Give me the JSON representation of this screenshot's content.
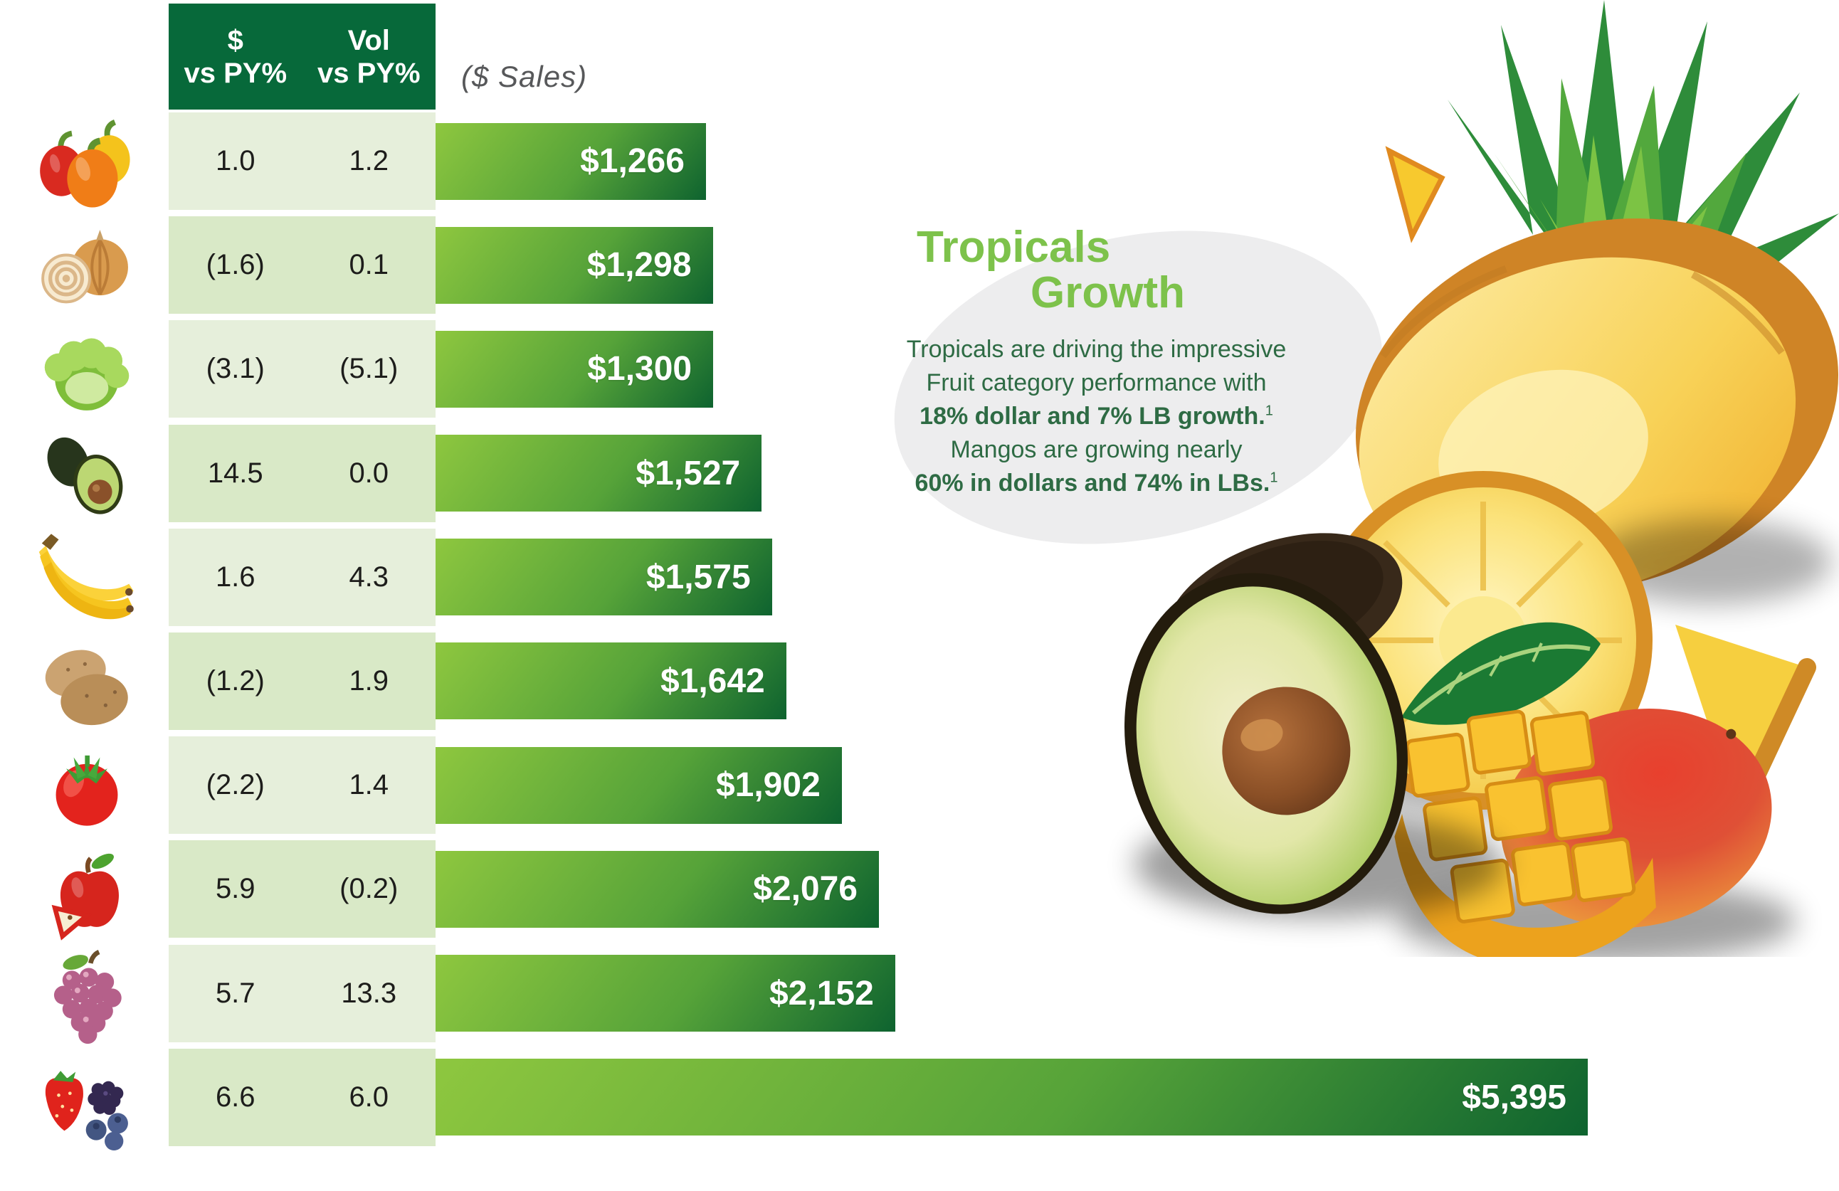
{
  "header": {
    "col1_top": "$",
    "col1_bottom": "vs PY%",
    "col2_top": "Vol",
    "col2_bottom": "vs PY%",
    "axis_label": "($ Sales)"
  },
  "rows": [
    {
      "icon": "bell-peppers-icon",
      "dollar_vs_py": "1.0",
      "vol_vs_py": "1.2",
      "sales_display": "$1,266",
      "sales_value": 1266
    },
    {
      "icon": "onion-icon",
      "dollar_vs_py": "(1.6)",
      "vol_vs_py": "0.1",
      "sales_display": "$1,298",
      "sales_value": 1298
    },
    {
      "icon": "lettuce-icon",
      "dollar_vs_py": "(3.1)",
      "vol_vs_py": "(5.1)",
      "sales_display": "$1,300",
      "sales_value": 1300
    },
    {
      "icon": "avocado-icon",
      "dollar_vs_py": "14.5",
      "vol_vs_py": "0.0",
      "sales_display": "$1,527",
      "sales_value": 1527
    },
    {
      "icon": "bananas-icon",
      "dollar_vs_py": "1.6",
      "vol_vs_py": "4.3",
      "sales_display": "$1,575",
      "sales_value": 1575
    },
    {
      "icon": "potatoes-icon",
      "dollar_vs_py": "(1.2)",
      "vol_vs_py": "1.9",
      "sales_display": "$1,642",
      "sales_value": 1642
    },
    {
      "icon": "tomato-icon",
      "dollar_vs_py": "(2.2)",
      "vol_vs_py": "1.4",
      "sales_display": "$1,902",
      "sales_value": 1902
    },
    {
      "icon": "apple-icon",
      "dollar_vs_py": "5.9",
      "vol_vs_py": "(0.2)",
      "sales_display": "$2,076",
      "sales_value": 2076
    },
    {
      "icon": "grapes-icon",
      "dollar_vs_py": "5.7",
      "vol_vs_py": "13.3",
      "sales_display": "$2,152",
      "sales_value": 2152
    },
    {
      "icon": "berries-icon",
      "dollar_vs_py": "6.6",
      "vol_vs_py": "6.0",
      "sales_display": "$5,395",
      "sales_value": 5395
    }
  ],
  "callout": {
    "title_line1": "Tropicals",
    "title_line2": "Growth",
    "line1": "Tropicals are driving the impressive",
    "line2": "Fruit category performance with",
    "line3_bold": "18% dollar and 7% LB growth.",
    "line4": "Mangos are growing nearly",
    "line5_bold": "60% in dollars and 74% in LBs.",
    "footnote_marker": "1"
  },
  "chart_data": {
    "type": "bar",
    "orientation": "horizontal",
    "title": "($ Sales)",
    "categories": [
      "bell peppers",
      "onions",
      "lettuce",
      "avocados",
      "bananas",
      "potatoes",
      "tomatoes",
      "apples",
      "grapes",
      "berries"
    ],
    "series": [
      {
        "name": "$ Sales",
        "values": [
          1266,
          1298,
          1300,
          1527,
          1575,
          1642,
          1902,
          2076,
          2152,
          5395
        ]
      },
      {
        "name": "$ vs PY%",
        "values": [
          1.0,
          -1.6,
          -3.1,
          14.5,
          1.6,
          -1.2,
          -2.2,
          5.9,
          5.7,
          6.6
        ]
      },
      {
        "name": "Vol vs PY%",
        "values": [
          1.2,
          0.1,
          -5.1,
          0.0,
          4.3,
          1.9,
          1.4,
          -0.2,
          13.3,
          6.0
        ]
      }
    ],
    "value_labels": [
      "$1,266",
      "$1,298",
      "$1,300",
      "$1,527",
      "$1,575",
      "$1,642",
      "$1,902",
      "$2,076",
      "$2,152",
      "$5,395"
    ],
    "value_label_position": "inside-end",
    "grid": false,
    "legend": false,
    "xlim": [
      0,
      5395
    ],
    "note": "negative values shown in parentheses in table"
  },
  "colors": {
    "header_green": "#07693a",
    "bar_gradient_start": "#8ec73f",
    "bar_gradient_mid": "#56a339",
    "bar_gradient_end": "#0e632f",
    "row_light": "#e6efdb",
    "row_dark": "#d9e9c7",
    "title_green": "#7dc24b",
    "body_green": "#2e6b44",
    "sales_label_gray": "#57585a"
  }
}
